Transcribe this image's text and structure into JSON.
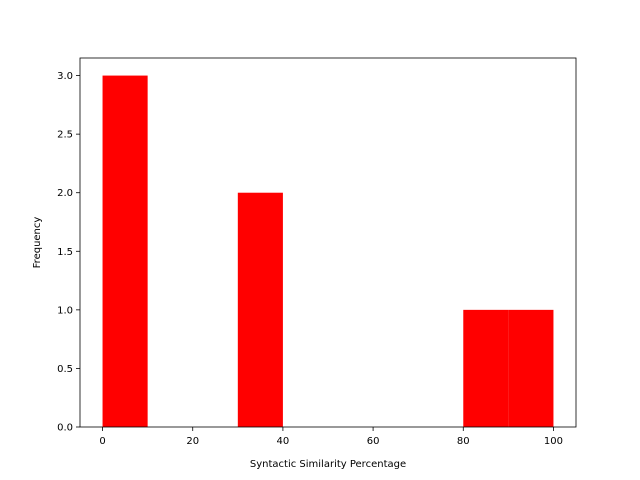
{
  "chart_data": {
    "type": "bar",
    "title": "",
    "xlabel": "Syntactic Similarity Percentage",
    "ylabel": "Frequency",
    "xlim": [
      -5,
      105
    ],
    "ylim": [
      0,
      3.15
    ],
    "grid": false,
    "bar_color": "#ff0000",
    "bins": [
      {
        "x0": 0,
        "x1": 10,
        "value": 3
      },
      {
        "x0": 10,
        "x1": 20,
        "value": 0
      },
      {
        "x0": 20,
        "x1": 30,
        "value": 0
      },
      {
        "x0": 30,
        "x1": 40,
        "value": 2
      },
      {
        "x0": 40,
        "x1": 50,
        "value": 0
      },
      {
        "x0": 50,
        "x1": 60,
        "value": 0
      },
      {
        "x0": 60,
        "x1": 70,
        "value": 0
      },
      {
        "x0": 70,
        "x1": 80,
        "value": 0
      },
      {
        "x0": 80,
        "x1": 90,
        "value": 1
      },
      {
        "x0": 90,
        "x1": 100,
        "value": 1
      }
    ],
    "x_ticks": [
      {
        "value": 0,
        "label": "0"
      },
      {
        "value": 20,
        "label": "20"
      },
      {
        "value": 40,
        "label": "40"
      },
      {
        "value": 60,
        "label": "60"
      },
      {
        "value": 80,
        "label": "80"
      },
      {
        "value": 100,
        "label": "100"
      }
    ],
    "y_ticks": [
      {
        "value": 0,
        "label": "0.0"
      },
      {
        "value": 0.5,
        "label": "0.5"
      },
      {
        "value": 1.0,
        "label": "1.0"
      },
      {
        "value": 1.5,
        "label": "1.5"
      },
      {
        "value": 2.0,
        "label": "2.0"
      },
      {
        "value": 2.5,
        "label": "2.5"
      },
      {
        "value": 3.0,
        "label": "3.0"
      }
    ]
  }
}
